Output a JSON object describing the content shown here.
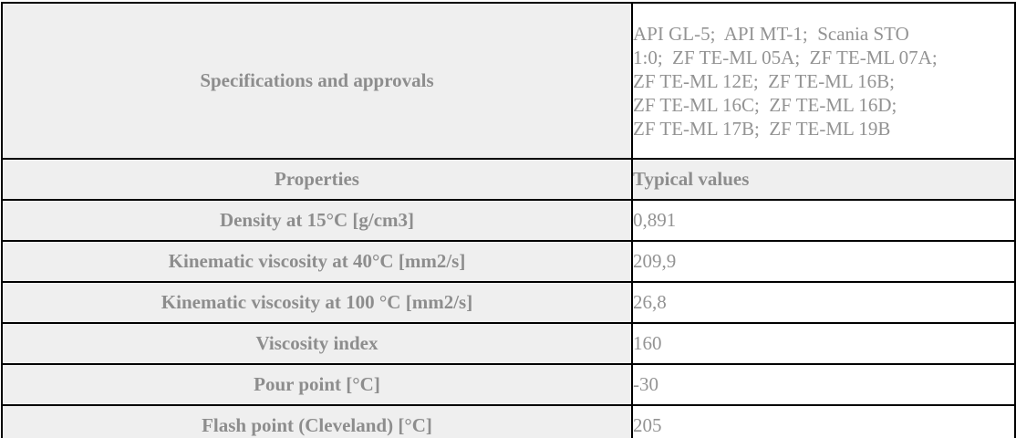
{
  "table": {
    "spec_section": {
      "label": "Specifications and approvals",
      "value": "API GL-5;  API MT-1;  Scania STO\n1:0;  ZF TE-ML 05A;  ZF TE-ML 07A;\nZF TE-ML 12E;  ZF TE-ML 16B;\nZF TE-ML 16C;  ZF TE-ML 16D;\nZF TE-ML 17B;  ZF TE-ML 19B"
    },
    "header": {
      "properties": "Properties",
      "typical_values": "Typical values"
    },
    "rows": [
      {
        "label": "Density at 15°C [g/cm3]",
        "value": "0,891"
      },
      {
        "label": "Kinematic viscosity at 40°C [mm2/s]",
        "value": "209,9"
      },
      {
        "label": "Kinematic viscosity at 100 °C [mm2/s]",
        "value": "26,8"
      },
      {
        "label": "Viscosity index",
        "value": "160"
      },
      {
        "label": "Pour point [°C]",
        "value": "-30"
      },
      {
        "label": "Flash point (Cleveland) [°C]",
        "value": "205"
      }
    ],
    "colors": {
      "border": "#000000",
      "label_cell_bg": "#efefef",
      "value_cell_bg": "#ffffff",
      "label_text": "#8d8d8d",
      "value_text": "#939393"
    }
  }
}
